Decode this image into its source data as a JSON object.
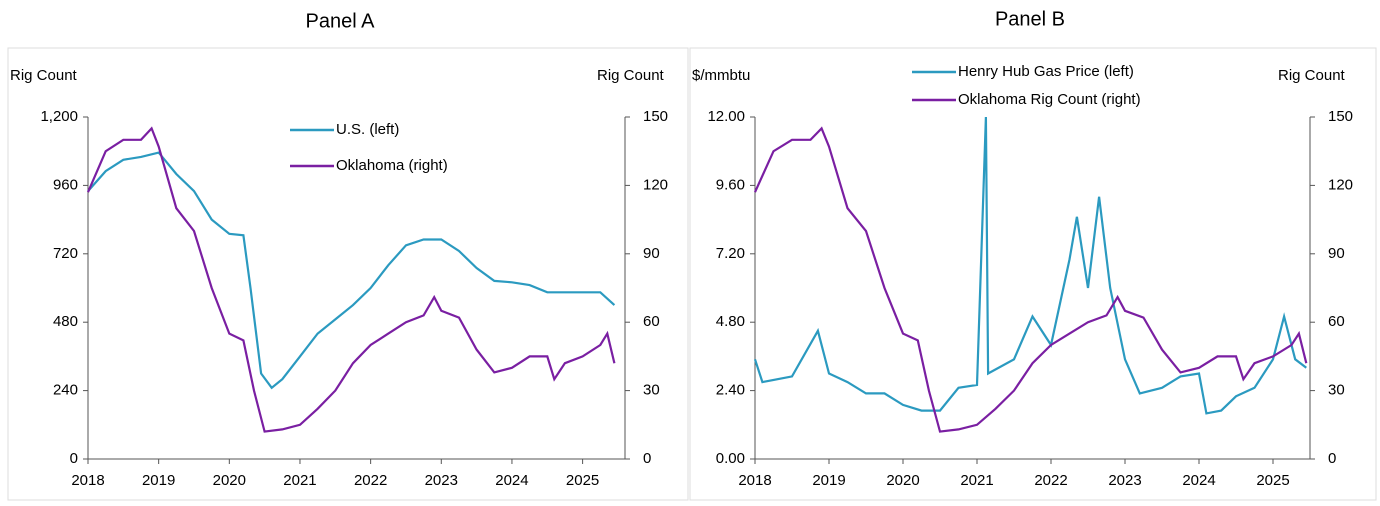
{
  "chart_data": [
    {
      "type": "line",
      "title": "Panel A",
      "y_label": "Rig Count",
      "y2_label": "Rig Count",
      "xlim": [
        2018,
        2025.6
      ],
      "xticks": [
        2018,
        2019,
        2020,
        2021,
        2022,
        2023,
        2024,
        2025
      ],
      "ylim": [
        0,
        1200
      ],
      "yticks": [
        0,
        240,
        480,
        720,
        960,
        {
          "value": 1200,
          "label": "1,200"
        }
      ],
      "y2lim": [
        0,
        150
      ],
      "y2ticks": [
        0,
        30,
        60,
        90,
        120,
        150
      ],
      "legend": "upper center",
      "series": [
        {
          "name": "U.S. (left)",
          "color": "#2b9ac0",
          "x": [
            2018.0,
            2018.25,
            2018.5,
            2018.75,
            2019.0,
            2019.25,
            2019.5,
            2019.75,
            2020.0,
            2020.2,
            2020.3,
            2020.45,
            2020.6,
            2020.75,
            2021.0,
            2021.25,
            2021.5,
            2021.75,
            2022.0,
            2022.25,
            2022.5,
            2022.75,
            2023.0,
            2023.25,
            2023.5,
            2023.75,
            2024.0,
            2024.25,
            2024.5,
            2024.75,
            2025.0,
            2025.25,
            2025.45
          ],
          "values": [
            940,
            1010,
            1050,
            1060,
            1075,
            1000,
            940,
            840,
            790,
            785,
            600,
            300,
            250,
            280,
            360,
            440,
            490,
            540,
            600,
            680,
            750,
            770,
            770,
            730,
            670,
            625,
            620,
            610,
            585,
            585,
            585,
            585,
            540
          ]
        },
        {
          "name": "Oklahoma (right)",
          "color": "#7a1fa2",
          "axis": "y2",
          "x": [
            2018.0,
            2018.25,
            2018.5,
            2018.75,
            2018.9,
            2019.0,
            2019.25,
            2019.5,
            2019.75,
            2020.0,
            2020.2,
            2020.35,
            2020.5,
            2020.75,
            2021.0,
            2021.25,
            2021.5,
            2021.75,
            2022.0,
            2022.25,
            2022.5,
            2022.75,
            2022.9,
            2023.0,
            2023.25,
            2023.5,
            2023.75,
            2024.0,
            2024.25,
            2024.5,
            2024.6,
            2024.75,
            2025.0,
            2025.25,
            2025.35,
            2025.45
          ],
          "values": [
            117,
            135,
            140,
            140,
            145,
            137,
            110,
            100,
            75,
            55,
            52,
            30,
            12,
            13,
            15,
            22,
            30,
            42,
            50,
            55,
            60,
            63,
            71,
            65,
            62,
            48,
            38,
            40,
            45,
            45,
            35,
            42,
            45,
            50,
            55,
            42
          ]
        }
      ]
    },
    {
      "type": "line",
      "title": "Panel B",
      "y_label": "$/mmbtu",
      "y2_label": "Rig Count",
      "xlim": [
        2018,
        2025.5
      ],
      "xticks": [
        2018,
        2019,
        2020,
        2021,
        2022,
        2023,
        2024,
        2025
      ],
      "ylim": [
        0,
        12
      ],
      "yticks": [
        {
          "value": 0,
          "label": "0.00"
        },
        {
          "value": 2.4,
          "label": "2.40"
        },
        {
          "value": 4.8,
          "label": "4.80"
        },
        {
          "value": 7.2,
          "label": "7.20"
        },
        {
          "value": 9.6,
          "label": "9.60"
        },
        {
          "value": 12,
          "label": "12.00"
        }
      ],
      "y2lim": [
        0,
        150
      ],
      "y2ticks": [
        0,
        30,
        60,
        90,
        120,
        150
      ],
      "legend": "top",
      "series": [
        {
          "name": "Henry Hub Gas Price (left)",
          "color": "#2b9ac0",
          "x": [
            2018.0,
            2018.1,
            2018.5,
            2018.85,
            2019.0,
            2019.25,
            2019.5,
            2019.75,
            2020.0,
            2020.25,
            2020.5,
            2020.75,
            2021.0,
            2021.12,
            2021.15,
            2021.5,
            2021.75,
            2022.0,
            2022.25,
            2022.35,
            2022.5,
            2022.65,
            2022.8,
            2023.0,
            2023.2,
            2023.5,
            2023.75,
            2024.0,
            2024.1,
            2024.3,
            2024.5,
            2024.75,
            2025.0,
            2025.15,
            2025.3,
            2025.45
          ],
          "values": [
            3.5,
            2.7,
            2.9,
            4.5,
            3.0,
            2.7,
            2.3,
            2.3,
            1.9,
            1.7,
            1.7,
            2.5,
            2.6,
            12.0,
            3.0,
            3.5,
            5.0,
            4.0,
            7.0,
            8.5,
            6.0,
            9.2,
            6.0,
            3.5,
            2.3,
            2.5,
            2.9,
            3.0,
            1.6,
            1.7,
            2.2,
            2.5,
            3.5,
            5.0,
            3.5,
            3.2
          ]
        },
        {
          "name": "Oklahoma Rig Count (right)",
          "color": "#7a1fa2",
          "axis": "y2",
          "x": [
            2018.0,
            2018.25,
            2018.5,
            2018.75,
            2018.9,
            2019.0,
            2019.25,
            2019.5,
            2019.75,
            2020.0,
            2020.2,
            2020.35,
            2020.5,
            2020.75,
            2021.0,
            2021.25,
            2021.5,
            2021.75,
            2022.0,
            2022.25,
            2022.5,
            2022.75,
            2022.9,
            2023.0,
            2023.25,
            2023.5,
            2023.75,
            2024.0,
            2024.25,
            2024.5,
            2024.6,
            2024.75,
            2025.0,
            2025.25,
            2025.35,
            2025.45
          ],
          "values": [
            117,
            135,
            140,
            140,
            145,
            137,
            110,
            100,
            75,
            55,
            52,
            30,
            12,
            13,
            15,
            22,
            30,
            42,
            50,
            55,
            60,
            63,
            71,
            65,
            62,
            48,
            38,
            40,
            45,
            45,
            35,
            42,
            45,
            50,
            55,
            42
          ]
        }
      ]
    }
  ]
}
